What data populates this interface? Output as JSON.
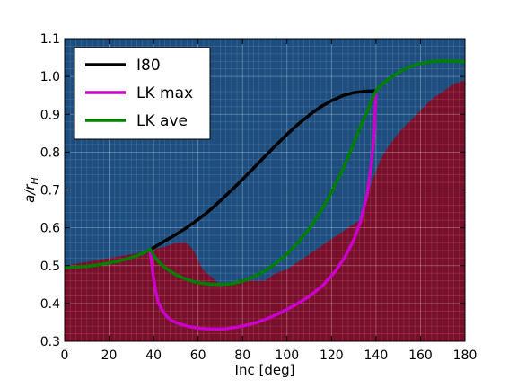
{
  "chart_data": {
    "type": "line",
    "title": "",
    "xlabel": "Inc [deg]",
    "ylabel": "a/r_H",
    "ylabel_main": "a/r",
    "ylabel_sub": "H",
    "xlim": [
      0,
      180
    ],
    "ylim": [
      0.3,
      1.1
    ],
    "x_ticks": [
      0,
      20,
      40,
      60,
      80,
      100,
      120,
      140,
      160,
      180
    ],
    "x_tick_labels": [
      "0",
      "20",
      "40",
      "60",
      "80",
      "100",
      "120",
      "140",
      "160",
      "180"
    ],
    "y_ticks": [
      0.3,
      0.4,
      0.5,
      0.6,
      0.7,
      0.8,
      0.9,
      1.0,
      1.1
    ],
    "y_tick_labels": [
      "0.3",
      "0.4",
      "0.5",
      "0.6",
      "0.7",
      "0.8",
      "0.9",
      "1.0",
      "1.1"
    ],
    "grid": true,
    "legend_position": "top-left",
    "background": {
      "unstable_color": "#7a0f2c",
      "stable_color": "#1d4e7f",
      "stability_boundary": [
        [
          0,
          0.5
        ],
        [
          10,
          0.51
        ],
        [
          20,
          0.52
        ],
        [
          30,
          0.53
        ],
        [
          38,
          0.54
        ],
        [
          45,
          0.55
        ],
        [
          50,
          0.56
        ],
        [
          55,
          0.56
        ],
        [
          58,
          0.54
        ],
        [
          62,
          0.49
        ],
        [
          66,
          0.47
        ],
        [
          70,
          0.45
        ],
        [
          75,
          0.45
        ],
        [
          80,
          0.46
        ],
        [
          85,
          0.46
        ],
        [
          90,
          0.46
        ],
        [
          95,
          0.48
        ],
        [
          100,
          0.49
        ],
        [
          105,
          0.51
        ],
        [
          110,
          0.53
        ],
        [
          115,
          0.55
        ],
        [
          120,
          0.57
        ],
        [
          125,
          0.59
        ],
        [
          130,
          0.61
        ],
        [
          133,
          0.62
        ],
        [
          135,
          0.67
        ],
        [
          138,
          0.72
        ],
        [
          142,
          0.78
        ],
        [
          145,
          0.81
        ],
        [
          150,
          0.85
        ],
        [
          155,
          0.88
        ],
        [
          160,
          0.91
        ],
        [
          165,
          0.94
        ],
        [
          170,
          0.96
        ],
        [
          175,
          0.98
        ],
        [
          180,
          0.99
        ]
      ]
    },
    "series": [
      {
        "name": "I80",
        "color": "#000000",
        "x": [
          38,
          45,
          50,
          55,
          60,
          65,
          70,
          75,
          80,
          85,
          90,
          95,
          100,
          105,
          110,
          115,
          120,
          125,
          130,
          135,
          140
        ],
        "y": [
          0.54,
          0.565,
          0.582,
          0.601,
          0.622,
          0.645,
          0.671,
          0.699,
          0.728,
          0.758,
          0.788,
          0.818,
          0.847,
          0.874,
          0.898,
          0.919,
          0.936,
          0.949,
          0.957,
          0.961,
          0.962
        ]
      },
      {
        "name": "LK max",
        "color": "#cc00cc",
        "x": [
          38.5,
          39,
          40,
          41,
          42,
          44,
          46,
          48,
          52,
          56,
          60,
          64,
          68,
          72,
          76,
          80,
          86,
          92,
          98,
          104,
          110,
          116,
          122,
          126,
          130,
          133,
          136,
          138,
          139.2,
          140
        ],
        "y": [
          0.54,
          0.512,
          0.467,
          0.431,
          0.404,
          0.381,
          0.365,
          0.355,
          0.345,
          0.339,
          0.335,
          0.333,
          0.332,
          0.333,
          0.336,
          0.34,
          0.349,
          0.362,
          0.378,
          0.397,
          0.419,
          0.447,
          0.487,
          0.522,
          0.568,
          0.615,
          0.688,
          0.773,
          0.85,
          0.955
        ]
      },
      {
        "name": "LK ave",
        "color": "#008000",
        "x": [
          0,
          5,
          10,
          15,
          20,
          25,
          30,
          35,
          38.5,
          40,
          42,
          45,
          50,
          55,
          60,
          65,
          70,
          75,
          80,
          85,
          90,
          95,
          100,
          105,
          110,
          115,
          120,
          125,
          130,
          133,
          136,
          138,
          140,
          142,
          145,
          150,
          155,
          160,
          165,
          170,
          175,
          180
        ],
        "y": [
          0.495,
          0.496,
          0.498,
          0.502,
          0.507,
          0.513,
          0.521,
          0.532,
          0.543,
          0.528,
          0.512,
          0.495,
          0.476,
          0.463,
          0.455,
          0.451,
          0.45,
          0.452,
          0.459,
          0.47,
          0.486,
          0.506,
          0.531,
          0.561,
          0.598,
          0.642,
          0.694,
          0.753,
          0.823,
          0.868,
          0.906,
          0.937,
          0.962,
          0.975,
          0.99,
          1.01,
          1.025,
          1.034,
          1.039,
          1.041,
          1.04,
          1.039
        ]
      }
    ]
  }
}
